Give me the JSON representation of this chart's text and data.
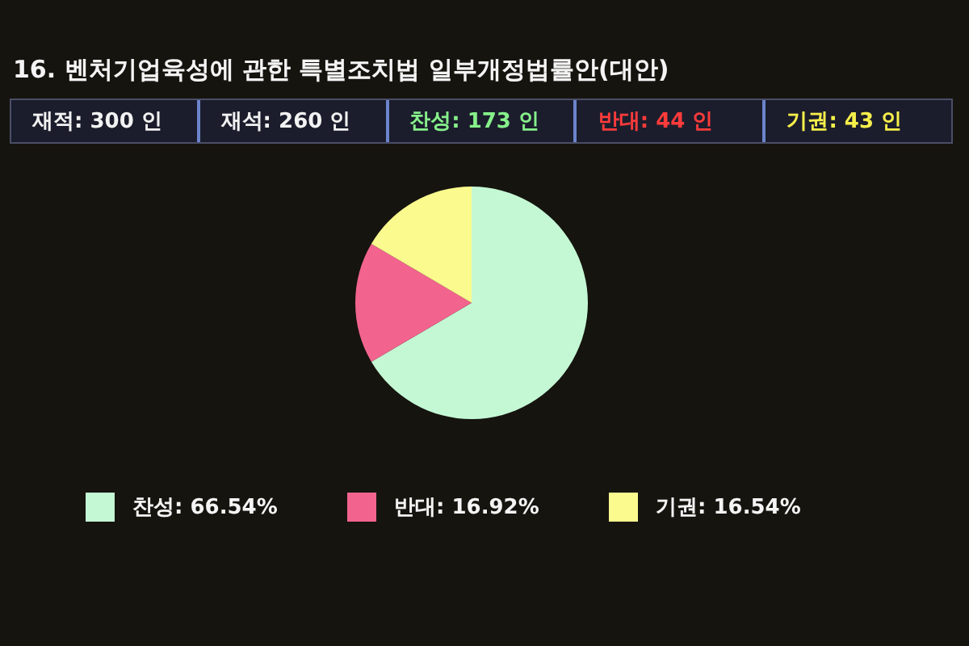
{
  "chart_data": {
    "type": "pie",
    "title": "16. 벤처기업육성에 관한 특별조치법 일부개정법률안(대안)",
    "annotations": [
      "재적: 300 인",
      "재석: 260 인",
      "찬성: 173 인",
      "반대: 44 인",
      "기권: 43 인"
    ],
    "categories": [
      "찬성",
      "반대",
      "기권"
    ],
    "values": [
      66.54,
      16.92,
      16.54
    ],
    "colors": [
      "#c4f8d4",
      "#f2648e",
      "#fafa8e"
    ],
    "value_labels": [
      "66.54%",
      "16.92%",
      "16.54%"
    ],
    "legend": "bottom"
  }
}
